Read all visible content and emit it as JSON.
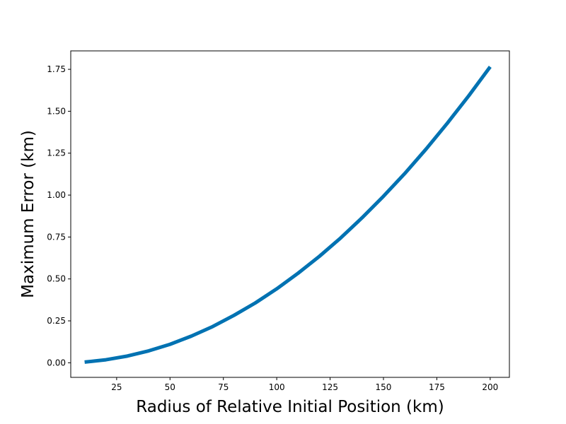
{
  "chart_data": {
    "type": "line",
    "xlabel": "Radius of Relative Initial Position (km)",
    "ylabel": "Maximum Error (km)",
    "xlim": [
      3.5,
      209
    ],
    "ylim": [
      -0.087,
      1.86
    ],
    "x_ticks": [
      25,
      50,
      75,
      100,
      125,
      150,
      175,
      200
    ],
    "x_tick_labels": [
      "25",
      "50",
      "75",
      "100",
      "125",
      "150",
      "175",
      "200"
    ],
    "y_ticks": [
      0.0,
      0.25,
      0.5,
      0.75,
      1.0,
      1.25,
      1.5,
      1.75
    ],
    "y_tick_labels": [
      "0.00",
      "0.25",
      "0.50",
      "0.75",
      "1.00",
      "1.25",
      "1.50",
      "1.75"
    ],
    "grid": false,
    "line_color": "#0072b2",
    "series": [
      {
        "x": [
          10,
          20,
          30,
          40,
          50,
          60,
          70,
          80,
          90,
          100,
          110,
          120,
          130,
          140,
          150,
          160,
          170,
          180,
          190,
          200
        ],
        "values": [
          0.004,
          0.018,
          0.04,
          0.071,
          0.11,
          0.159,
          0.216,
          0.283,
          0.357,
          0.441,
          0.534,
          0.635,
          0.745,
          0.865,
          0.993,
          1.129,
          1.275,
          1.43,
          1.593,
          1.765
        ]
      }
    ]
  }
}
